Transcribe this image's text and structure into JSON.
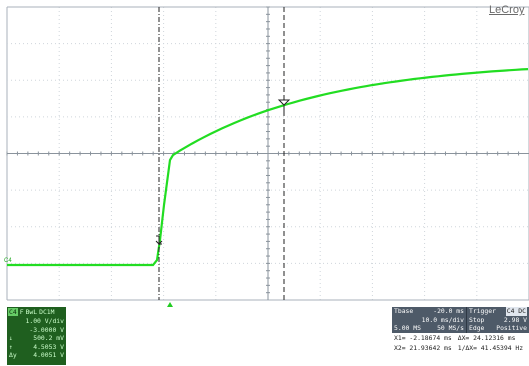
{
  "brand": "LeCroy",
  "trace": {
    "label": "C4",
    "color": "#22dd22"
  },
  "channel": {
    "name": "C4",
    "mode": "F",
    "bwl": "BwL",
    "coupling": "DC1M",
    "vdiv": "1.00 V/div",
    "offset": "-3.0000 V",
    "rows": [
      {
        "sym": "↓",
        "value": "500.2 mV"
      },
      {
        "sym": "↑",
        "value": "4.5053 V"
      },
      {
        "sym": "Δy",
        "value": "4.0051 V"
      }
    ]
  },
  "timebase": {
    "label": "Tbase",
    "delay": "-20.0 ms",
    "tdiv": "10.0 ms/div",
    "memory": "5.00 MS",
    "rate": "50 MS/s"
  },
  "trigger": {
    "label": "Trigger",
    "channel": "C4 DC",
    "mode": "Stop",
    "level": "2.98 V",
    "type": "Edge",
    "slope": "Positive"
  },
  "cursors": {
    "x1": "X1= -2.18674 ms",
    "dx": "ΔX= 24.12316 ms",
    "x2": "X2= 21.93642 ms",
    "inv_dx": "1/ΔX= 41.45394 Hz"
  }
}
